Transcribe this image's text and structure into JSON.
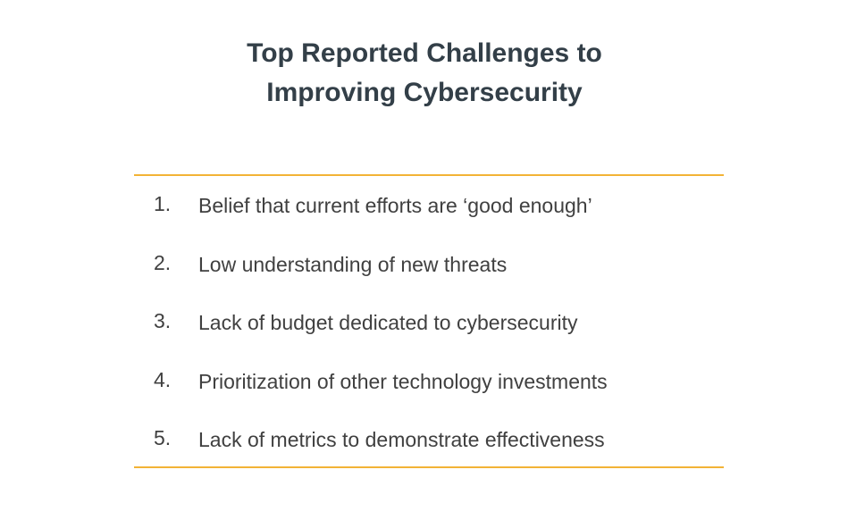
{
  "slide": {
    "title_line1": "Top Reported Challenges to",
    "title_line2": "Improving Cybersecurity",
    "colors": {
      "title": "#333f48",
      "body_text": "#404040",
      "accent_rule": "#f2b336",
      "background": "#ffffff"
    },
    "items": [
      {
        "number": "1.",
        "text": "Belief that current efforts are ‘good enough’"
      },
      {
        "number": "2.",
        "text": "Low understanding of new threats"
      },
      {
        "number": "3.",
        "text": "Lack of budget dedicated to cybersecurity"
      },
      {
        "number": "4.",
        "text": "Prioritization of other technology investments"
      },
      {
        "number": "5.",
        "text": "Lack of metrics to demonstrate effectiveness"
      }
    ]
  }
}
